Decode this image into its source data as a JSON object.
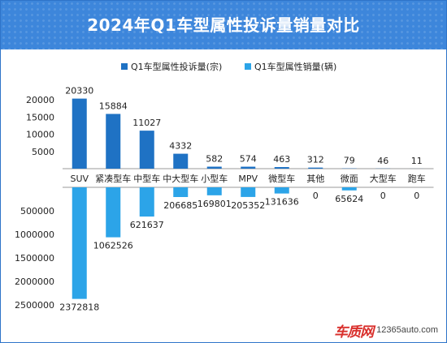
{
  "header": {
    "title": "2024年Q1车型属性投诉量销量对比"
  },
  "watermark": {
    "logo": "车质网",
    "url": "12365auto.com"
  },
  "chart_data": {
    "type": "bar",
    "title": "2024年Q1车型属性投诉量销量对比",
    "categories": [
      "SUV",
      "紧凑型车",
      "中型车",
      "中大型车",
      "小型车",
      "MPV",
      "微型车",
      "其他",
      "微面",
      "大型车",
      "跑车"
    ],
    "series": [
      {
        "name": "Q1车型属性投诉量(宗)",
        "color": "#1f72c4",
        "direction": "up",
        "values": [
          20330,
          15884,
          11027,
          4332,
          582,
          574,
          463,
          312,
          79,
          46,
          11
        ],
        "value_labels": [
          "20330",
          "15884",
          "11027",
          "4332",
          "582",
          "574",
          "463",
          "312",
          "79",
          "46",
          "11"
        ],
        "axis": {
          "min": 0,
          "max": 20000,
          "ticks": [
            5000,
            10000,
            15000,
            20000
          ],
          "tick_labels": [
            "5000",
            "10000",
            "15000",
            "20000"
          ]
        }
      },
      {
        "name": "Q1车型属性销量(辆)",
        "color": "#2ca4e8",
        "direction": "down",
        "values": [
          2372818,
          1062526,
          621637,
          206685,
          169801,
          205352,
          131636,
          0,
          65624,
          0,
          0
        ],
        "value_labels": [
          "2372818",
          "1062526",
          "621637",
          "206685",
          "169801",
          "205352",
          "131636",
          "0",
          "65624",
          "0",
          "0"
        ],
        "axis": {
          "min": 0,
          "max": 2500000,
          "ticks": [
            500000,
            1000000,
            1500000,
            2000000,
            2500000
          ],
          "tick_labels": [
            "500000",
            "1000000",
            "1500000",
            "2000000",
            "2500000"
          ]
        }
      }
    ],
    "legend": "top-center",
    "grid": false
  }
}
